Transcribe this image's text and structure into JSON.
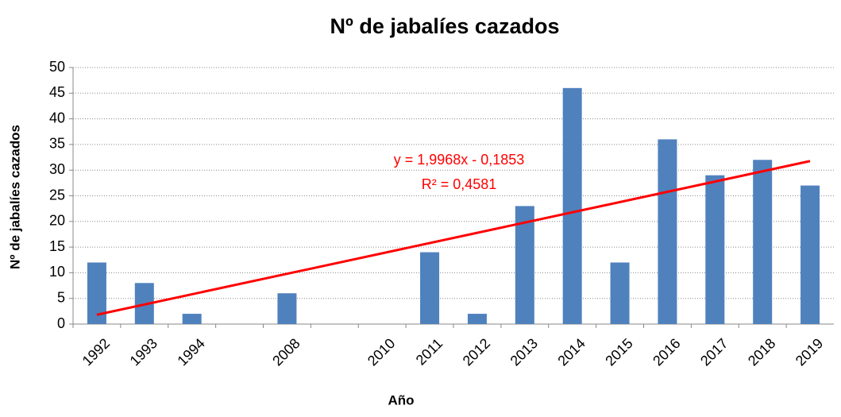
{
  "chart_data": {
    "type": "bar",
    "title": "Nº de jabalíes cazados",
    "x_label": "Año",
    "y_label": "Nº de jabalíes  cazados",
    "categories": [
      "1992",
      "1993",
      "1994",
      null,
      "2008",
      null,
      "2010",
      "2011",
      "2012",
      "2013",
      "2014",
      "2015",
      "2016",
      "2017",
      "2018",
      "2019"
    ],
    "values": [
      12,
      8,
      2,
      null,
      6,
      null,
      null,
      14,
      2,
      23,
      46,
      12,
      36,
      29,
      32,
      27
    ],
    "color": "#4f81bd",
    "ylim": [
      0,
      50
    ],
    "yticks": [
      0,
      5,
      10,
      15,
      20,
      25,
      30,
      35,
      40,
      45,
      50
    ],
    "grid": true,
    "trendline": {
      "slope": 1.9968,
      "intercept": -0.1853,
      "color": "#ff0000",
      "equation": "y = 1,9968x - 0,1853",
      "r2": "R² = 0,4581"
    }
  }
}
